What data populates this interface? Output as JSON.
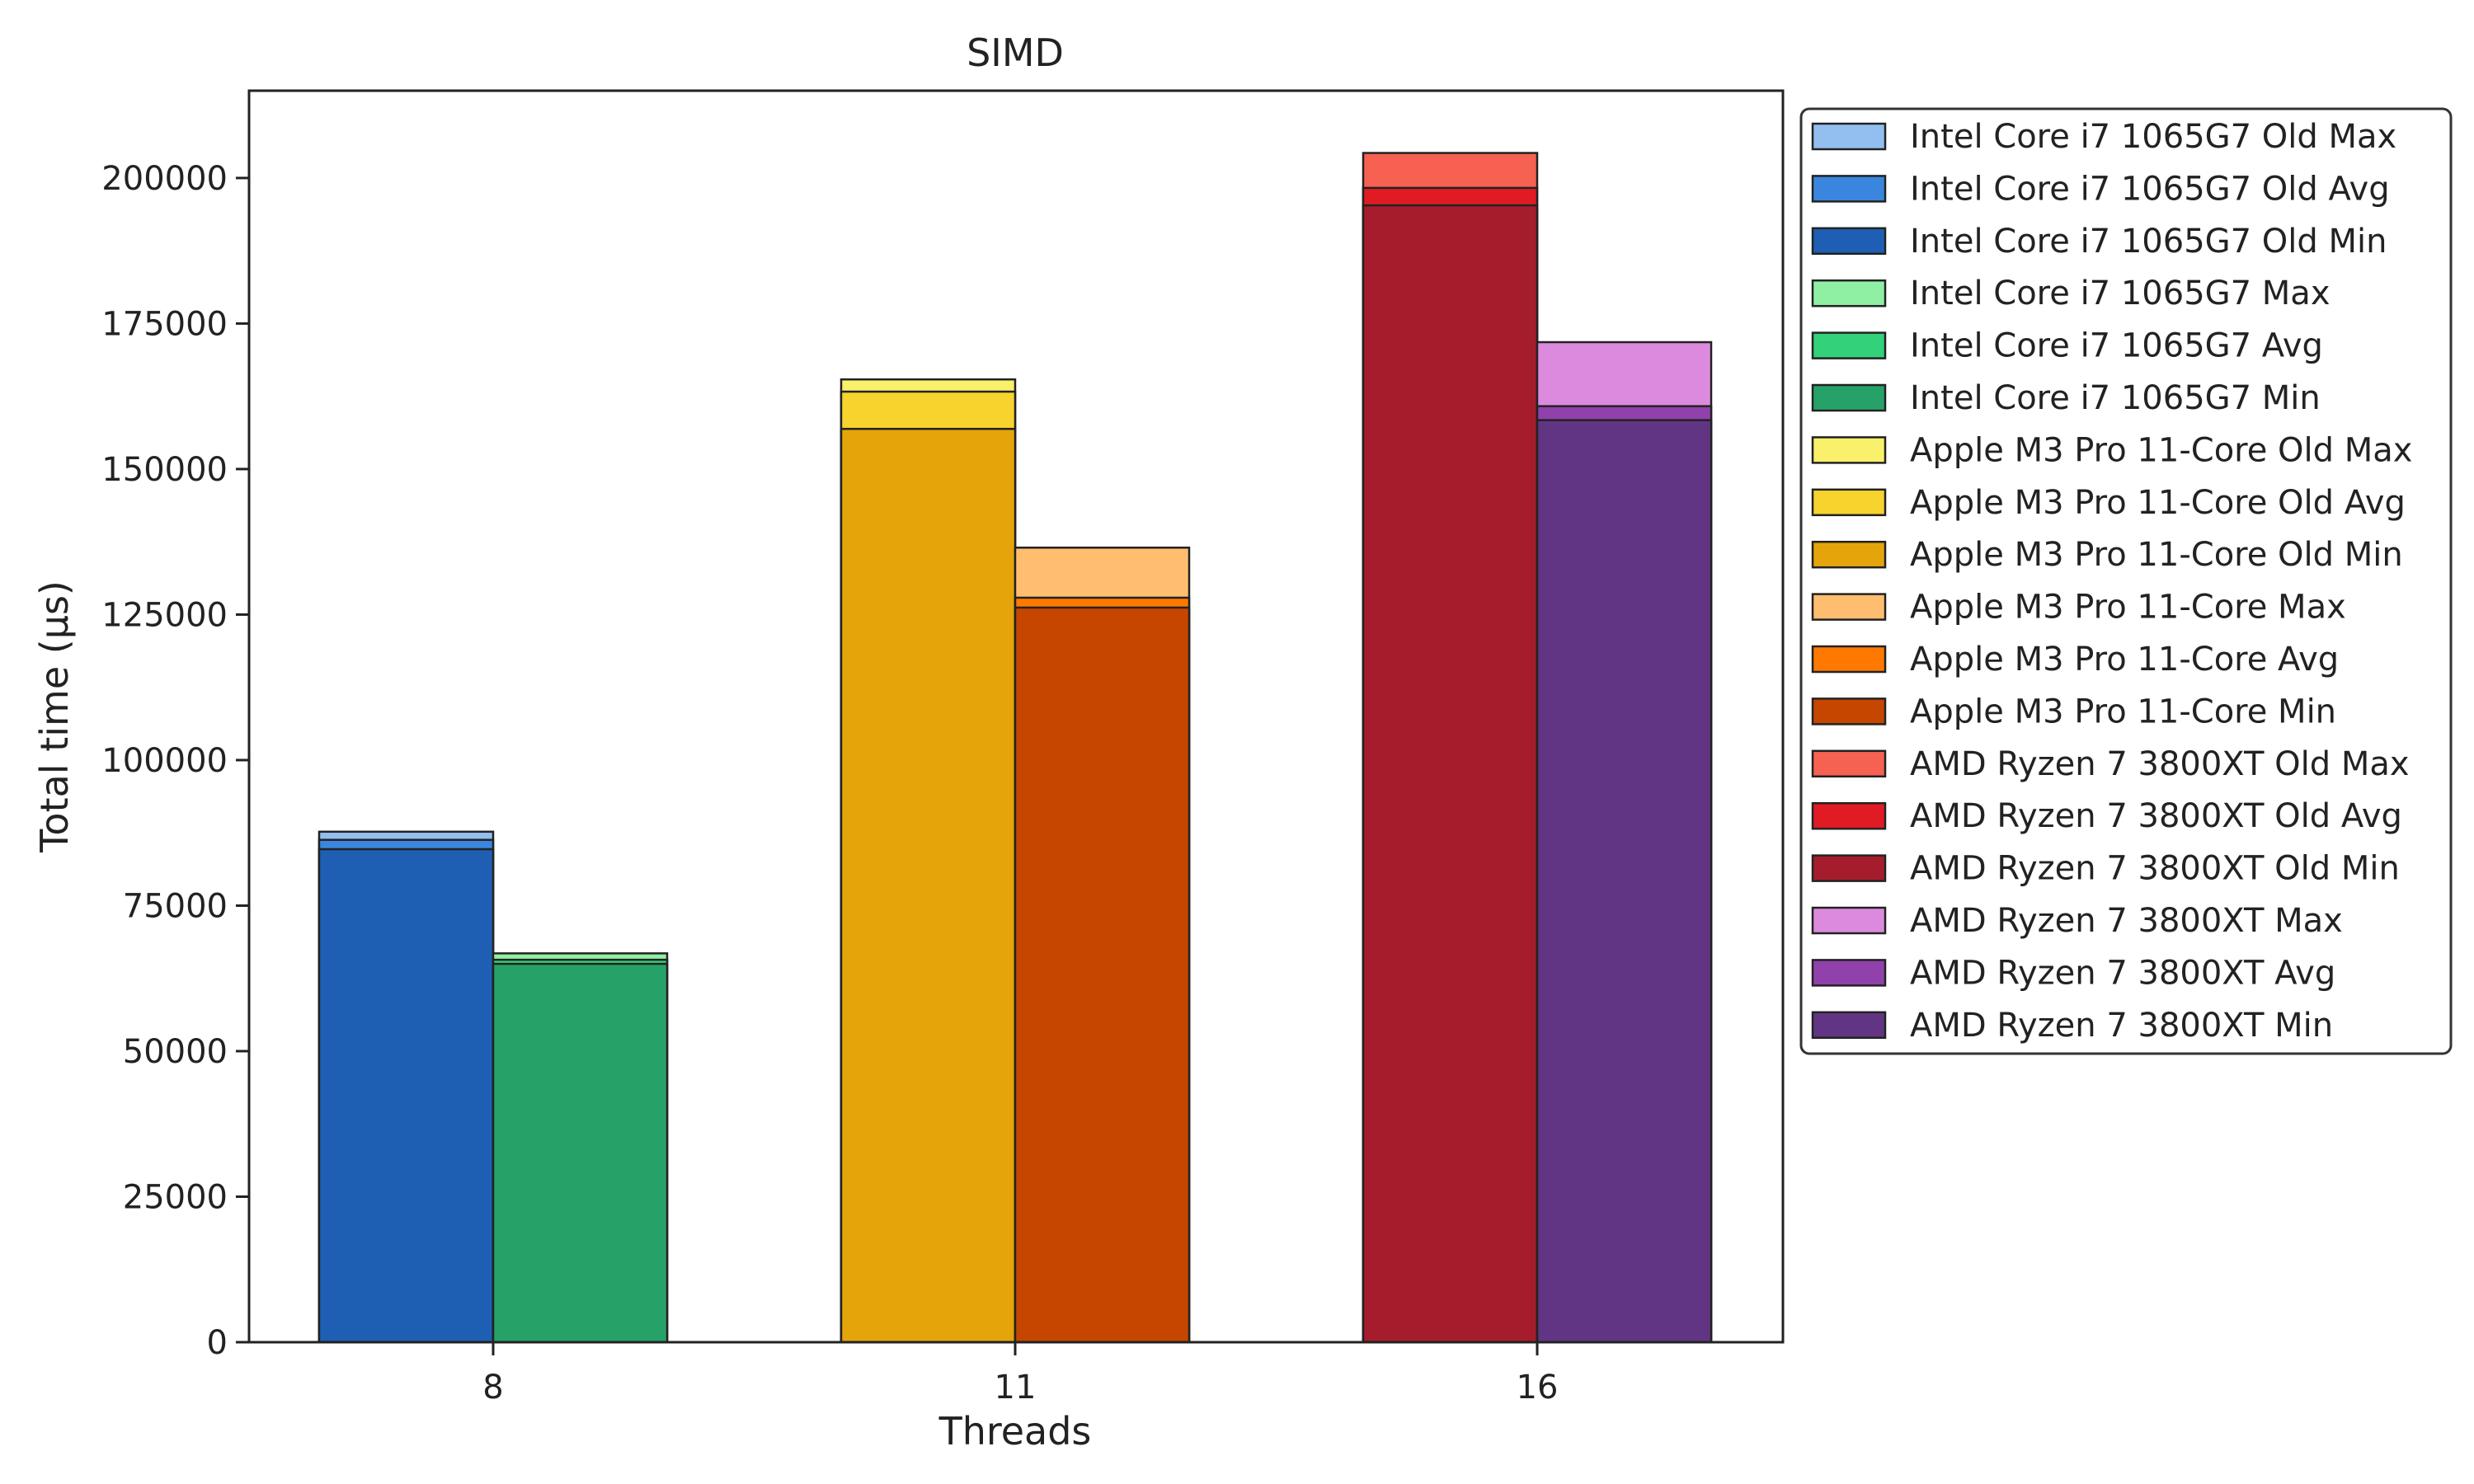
{
  "chart_data": {
    "type": "bar",
    "title": "SIMD",
    "xlabel": "Threads",
    "ylabel": "Total time (µs)",
    "categories": [
      "8",
      "11",
      "16"
    ],
    "ylim": [
      0,
      215000
    ],
    "yticks": [
      "0",
      "25000",
      "50000",
      "75000",
      "100000",
      "125000",
      "150000",
      "175000",
      "200000"
    ],
    "grid": false,
    "legend_position": "outside right, top",
    "groups": [
      {
        "category": "8",
        "bars": [
          {
            "name": "Intel Core i7 1065G7 Old",
            "max": 87700,
            "avg": 86300,
            "min": 84700,
            "colors": {
              "max": "#93bff0",
              "avg": "#3a86df",
              "min": "#1e5fb4"
            }
          },
          {
            "name": "Intel Core i7 1065G7",
            "max": 66800,
            "avg": 65700,
            "min": 65000,
            "colors": {
              "max": "#8ff0a4",
              "avg": "#33d17a",
              "min": "#26a269"
            }
          }
        ]
      },
      {
        "category": "11",
        "bars": [
          {
            "name": "Apple M3 Pro 11-Core Old",
            "max": 165400,
            "avg": 163300,
            "min": 156900,
            "colors": {
              "max": "#f9f06b",
              "avg": "#f6d32d",
              "min": "#e5a50a"
            }
          },
          {
            "name": "Apple M3 Pro 11-Core",
            "max": 136500,
            "avg": 127900,
            "min": 126200,
            "colors": {
              "max": "#ffbe6f",
              "avg": "#ff7800",
              "min": "#c64600"
            }
          }
        ]
      },
      {
        "category": "16",
        "bars": [
          {
            "name": "AMD Ryzen 7 3800XT Old",
            "max": 204300,
            "avg": 198300,
            "min": 195300,
            "colors": {
              "max": "#f66151",
              "avg": "#e01b24",
              "min": "#a51d2d"
            }
          },
          {
            "name": "AMD Ryzen 7 3800XT",
            "max": 171800,
            "avg": 160800,
            "min": 158400,
            "colors": {
              "max": "#dc8add",
              "avg": "#9141ac",
              "min": "#613583"
            }
          }
        ]
      }
    ],
    "legend": [
      {
        "label": "Intel Core i7 1065G7 Old Max",
        "color": "#93bff0"
      },
      {
        "label": "Intel Core i7 1065G7 Old Avg",
        "color": "#3a86df"
      },
      {
        "label": "Intel Core i7 1065G7 Old Min",
        "color": "#1e5fb4"
      },
      {
        "label": "Intel Core i7 1065G7 Max",
        "color": "#8ff0a4"
      },
      {
        "label": "Intel Core i7 1065G7 Avg",
        "color": "#33d17a"
      },
      {
        "label": "Intel Core i7 1065G7 Min",
        "color": "#26a269"
      },
      {
        "label": "Apple M3 Pro 11-Core Old Max",
        "color": "#f9f06b"
      },
      {
        "label": "Apple M3 Pro 11-Core Old Avg",
        "color": "#f6d32d"
      },
      {
        "label": "Apple M3 Pro 11-Core Old Min",
        "color": "#e5a50a"
      },
      {
        "label": "Apple M3 Pro 11-Core Max",
        "color": "#ffbe6f"
      },
      {
        "label": "Apple M3 Pro 11-Core Avg",
        "color": "#ff7800"
      },
      {
        "label": "Apple M3 Pro 11-Core Min",
        "color": "#c64600"
      },
      {
        "label": "AMD Ryzen 7 3800XT Old Max",
        "color": "#f66151"
      },
      {
        "label": "AMD Ryzen 7 3800XT Old Avg",
        "color": "#e01b24"
      },
      {
        "label": "AMD Ryzen 7 3800XT Old Min",
        "color": "#a51d2d"
      },
      {
        "label": "AMD Ryzen 7 3800XT Max",
        "color": "#dc8add"
      },
      {
        "label": "AMD Ryzen 7 3800XT Avg",
        "color": "#9141ac"
      },
      {
        "label": "AMD Ryzen 7 3800XT Min",
        "color": "#613583"
      }
    ]
  }
}
